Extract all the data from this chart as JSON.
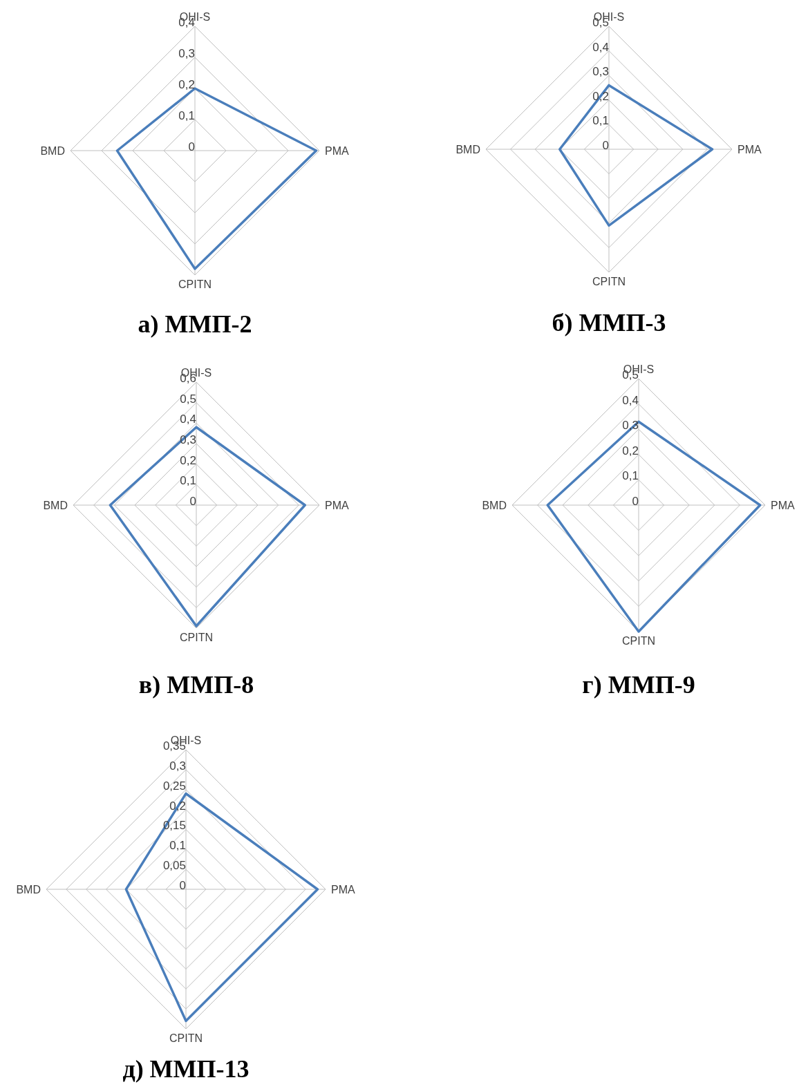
{
  "chart_data": [
    {
      "type": "radar",
      "title": "а) ММП-2",
      "categories": [
        "OHI-S",
        "PMA",
        "CPITN",
        "BMD"
      ],
      "series": [
        {
          "color": "#4a7ebb",
          "values": [
            0.2,
            0.39,
            0.38,
            0.25
          ]
        }
      ],
      "ylim": [
        0,
        0.4
      ],
      "yticks": [
        {
          "value": 0,
          "label": "0"
        },
        {
          "value": 0.1,
          "label": "0,1"
        },
        {
          "value": 0.2,
          "label": "0,2"
        },
        {
          "value": 0.3,
          "label": "0,3"
        },
        {
          "value": 0.4,
          "label": "0,4"
        }
      ],
      "grid": true,
      "legend": false,
      "marker": "none",
      "line_style": "solid"
    },
    {
      "type": "radar",
      "title": "б) ММП-3",
      "categories": [
        "OHI-S",
        "PMA",
        "CPITN",
        "BMD"
      ],
      "series": [
        {
          "color": "#4a7ebb",
          "values": [
            0.26,
            0.42,
            0.31,
            0.2
          ]
        }
      ],
      "ylim": [
        0,
        0.5
      ],
      "yticks": [
        {
          "value": 0,
          "label": "0"
        },
        {
          "value": 0.1,
          "label": "0,1"
        },
        {
          "value": 0.2,
          "label": "0,2"
        },
        {
          "value": 0.3,
          "label": "0,3"
        },
        {
          "value": 0.4,
          "label": "0,4"
        },
        {
          "value": 0.5,
          "label": "0,5"
        }
      ],
      "grid": true,
      "legend": false,
      "marker": "none",
      "line_style": "solid"
    },
    {
      "type": "radar",
      "title": "в) ММП-8",
      "categories": [
        "OHI-S",
        "PMA",
        "CPITN",
        "BMD"
      ],
      "series": [
        {
          "color": "#4a7ebb",
          "values": [
            0.38,
            0.53,
            0.59,
            0.42
          ]
        }
      ],
      "ylim": [
        0,
        0.6
      ],
      "yticks": [
        {
          "value": 0,
          "label": "0"
        },
        {
          "value": 0.1,
          "label": "0,1"
        },
        {
          "value": 0.2,
          "label": "0,2"
        },
        {
          "value": 0.3,
          "label": "0,3"
        },
        {
          "value": 0.4,
          "label": "0,4"
        },
        {
          "value": 0.5,
          "label": "0,5"
        },
        {
          "value": 0.6,
          "label": "0,6"
        }
      ],
      "grid": true,
      "legend": false,
      "marker": "none",
      "line_style": "solid"
    },
    {
      "type": "radar",
      "title": "г) ММП-9",
      "categories": [
        "OHI-S",
        "PMA",
        "CPITN",
        "BMD"
      ],
      "series": [
        {
          "color": "#4a7ebb",
          "values": [
            0.33,
            0.48,
            0.5,
            0.36
          ]
        }
      ],
      "ylim": [
        0,
        0.5
      ],
      "yticks": [
        {
          "value": 0,
          "label": "0"
        },
        {
          "value": 0.1,
          "label": "0,1"
        },
        {
          "value": 0.2,
          "label": "0,2"
        },
        {
          "value": 0.3,
          "label": "0,3"
        },
        {
          "value": 0.4,
          "label": "0,4"
        },
        {
          "value": 0.5,
          "label": "0,5"
        }
      ],
      "grid": true,
      "legend": false,
      "marker": "none",
      "line_style": "solid"
    },
    {
      "type": "radar",
      "title": "д) ММП-13",
      "categories": [
        "OHI-S",
        "PMA",
        "CPITN",
        "BMD"
      ],
      "series": [
        {
          "color": "#4a7ebb",
          "values": [
            0.24,
            0.33,
            0.33,
            0.15
          ]
        }
      ],
      "ylim": [
        0,
        0.35
      ],
      "yticks": [
        {
          "value": 0,
          "label": "0"
        },
        {
          "value": 0.05,
          "label": "0,05"
        },
        {
          "value": 0.1,
          "label": "0,1"
        },
        {
          "value": 0.15,
          "label": "0,15"
        },
        {
          "value": 0.2,
          "label": "0,2"
        },
        {
          "value": 0.25,
          "label": "0,25"
        },
        {
          "value": 0.3,
          "label": "0,3"
        },
        {
          "value": 0.35,
          "label": "0,35"
        }
      ],
      "grid": true,
      "legend": false,
      "marker": "none",
      "line_style": "solid"
    }
  ]
}
